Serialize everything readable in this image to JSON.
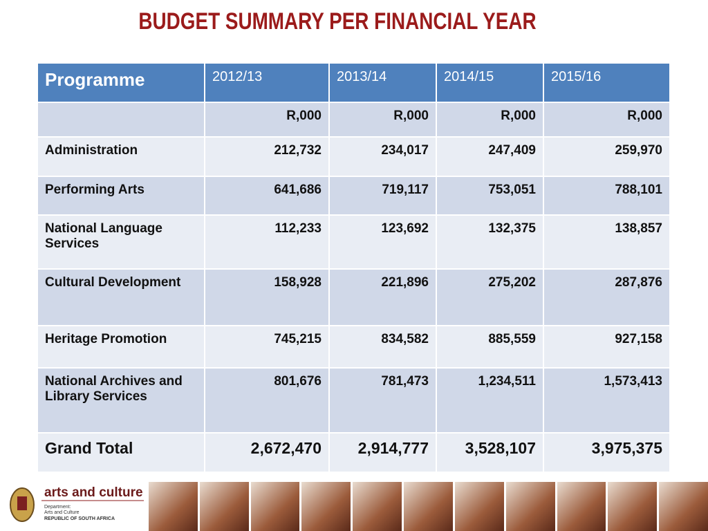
{
  "title": "BUDGET SUMMARY PER FINANCIAL YEAR",
  "table": {
    "header": [
      "Programme",
      "2012/13",
      "2013/14",
      "2014/15",
      "2015/16"
    ],
    "rows": [
      [
        "",
        "R,000",
        "R,000",
        "R,000",
        "R,000"
      ],
      [
        "Administration",
        "212,732",
        "234,017",
        "247,409",
        "259,970"
      ],
      [
        "Performing Arts",
        "641,686",
        "719,117",
        "753,051",
        "788,101"
      ],
      [
        "National Language Services",
        "112,233",
        "123,692",
        "132,375",
        "138,857"
      ],
      [
        "Cultural Development",
        "158,928",
        "221,896",
        "275,202",
        "287,876"
      ],
      [
        "Heritage Promotion",
        "745,215",
        "834,582",
        "885,559",
        "927,158"
      ],
      [
        "National  Archives and Library Services",
        "801,676",
        "781,473",
        "1,234,511",
        "1,573,413"
      ],
      [
        "Grand Total",
        "2,672,470",
        "2,914,777",
        "3,528,107",
        "3,975,375"
      ]
    ]
  },
  "footer": {
    "brand": "arts and culture",
    "department": [
      "Department:",
      "Arts and Culture",
      "REPUBLIC OF SOUTH AFRICA"
    ]
  }
}
